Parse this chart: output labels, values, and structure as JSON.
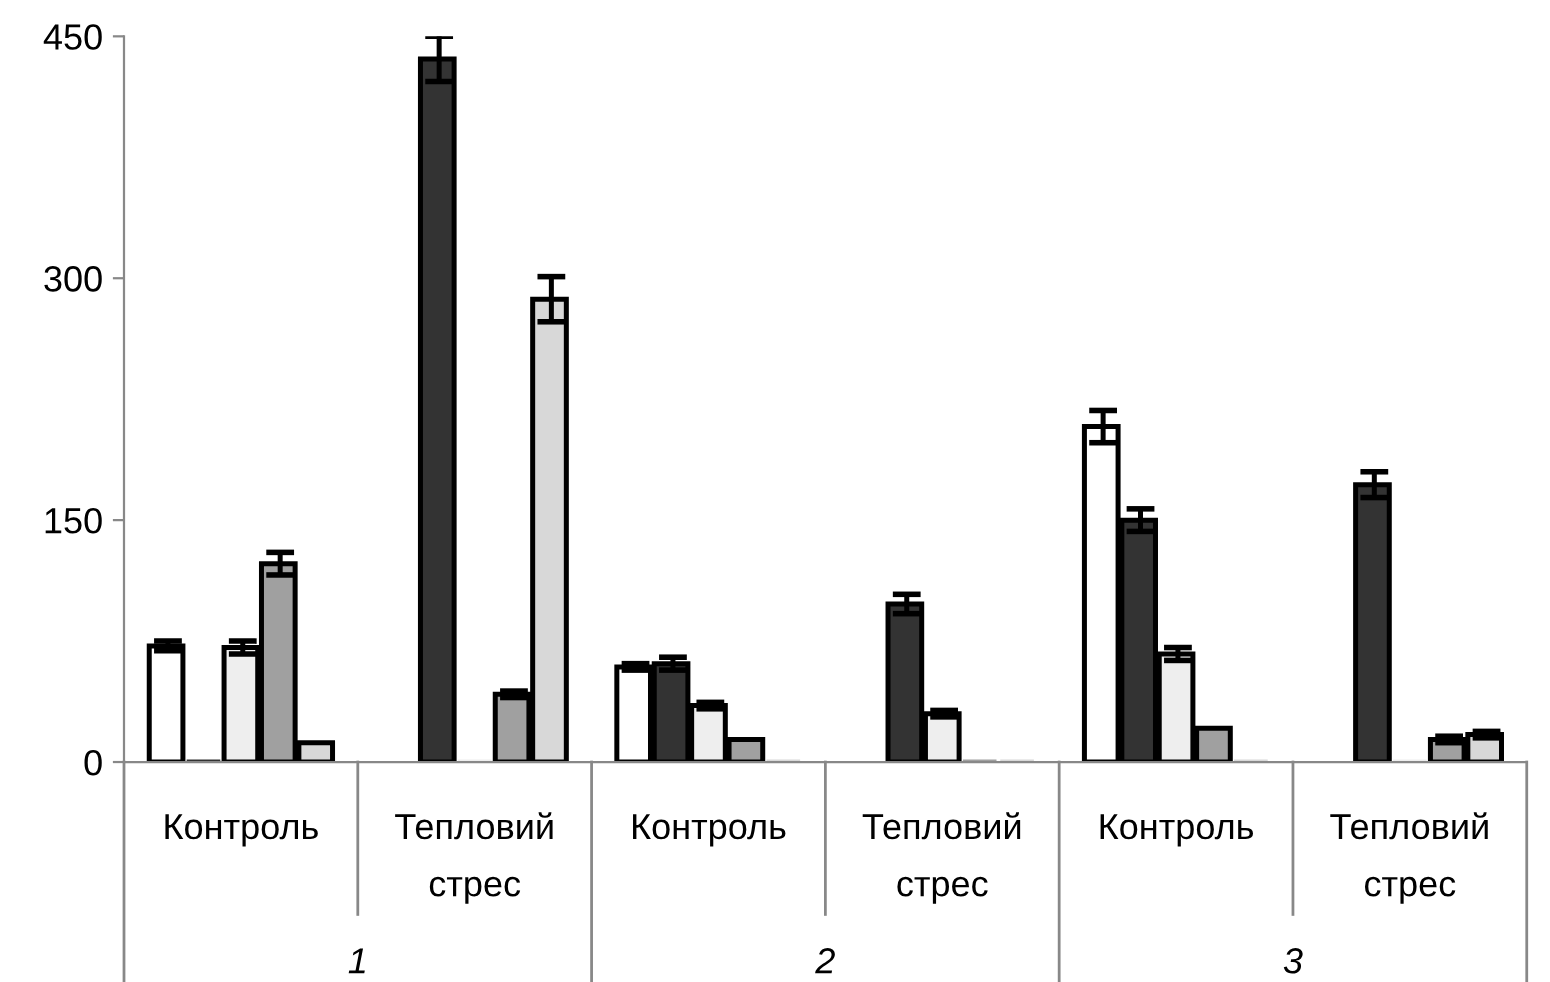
{
  "chart_data": {
    "type": "bar",
    "categories": [
      "Контроль",
      "Тепловий\nстрес",
      "Контроль",
      "Тепловий\nстрес",
      "Контроль",
      "Тепловий\nстрес"
    ],
    "series": [
      {
        "color": "#ffffff",
        "values": [
          72,
          0,
          59,
          0,
          208,
          0
        ],
        "errors": [
          3,
          null,
          2,
          null,
          10,
          null
        ]
      },
      {
        "color": "#333333",
        "values": [
          0,
          436,
          61,
          98,
          150,
          172
        ],
        "errors": [
          null,
          14,
          4,
          6,
          7,
          8
        ]
      },
      {
        "color": "#eeeeee",
        "values": [
          71,
          0,
          35,
          30,
          67,
          0
        ],
        "errors": [
          4,
          null,
          2,
          2,
          4,
          null
        ]
      },
      {
        "color": "#a0a0a0",
        "values": [
          123,
          42,
          14,
          0,
          21,
          14
        ],
        "errors": [
          7,
          2,
          null,
          null,
          null,
          2
        ]
      },
      {
        "color": "#d8d8d8",
        "values": [
          12,
          287,
          0,
          0,
          0,
          17
        ],
        "errors": [
          null,
          14,
          null,
          null,
          null,
          2
        ]
      }
    ],
    "annotations": [
      "1",
      "2",
      "3"
    ],
    "ylim": [
      0,
      450
    ],
    "yticks": [
      0,
      150,
      300,
      450
    ],
    "grid": false
  }
}
